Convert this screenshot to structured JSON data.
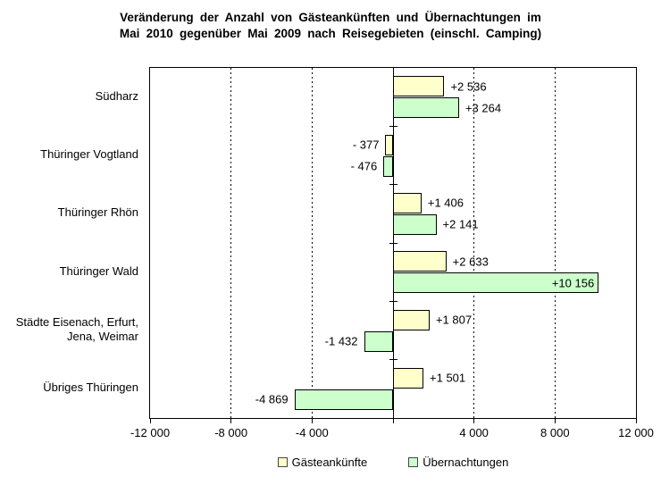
{
  "title": {
    "line1": "Veränderung der Anzahl von Gästeankünften und Übernachtungen im",
    "line2": "Mai 2010 gegenüber Mai 2009 nach Reisegebieten (einschl. Camping)"
  },
  "chart_data": {
    "type": "bar",
    "orientation": "horizontal",
    "title": "Veränderung der Anzahl von Gästeankünften und Übernachtungen im Mai 2010 gegenüber Mai 2009 nach Reisegebieten (einschl. Camping)",
    "categories": [
      "Südharz",
      "Thüringer Vogtland",
      "Thüringer Rhön",
      "Thüringer Wald",
      "Städte Eisenach, Erfurt,\nJena, Weimar",
      "Übriges Thüringen"
    ],
    "series": [
      {
        "name": "Gästeankünfte",
        "color": "#FFFFCC",
        "border_color": "#000000",
        "values": [
          2536,
          -377,
          1406,
          2633,
          1807,
          1501
        ],
        "labels": [
          "+2 536",
          "- 377",
          "+1 406",
          "+2 633",
          "+1 807",
          "+1 501"
        ]
      },
      {
        "name": "Übernachtungen",
        "color": "#CCFFCC",
        "border_color": "#000000",
        "values": [
          3264,
          -476,
          2141,
          10156,
          -1432,
          -4869
        ],
        "labels": [
          "+3 264",
          "- 476",
          "+2 141",
          "+10 156",
          "-1 432",
          "-4 869"
        ]
      }
    ],
    "xlim": [
      -12000,
      12000
    ],
    "x_ticks": [
      {
        "value": -12000,
        "label": "-12 000"
      },
      {
        "value": -8000,
        "label": "-8 000"
      },
      {
        "value": -4000,
        "label": "-4 000"
      },
      {
        "value": 0,
        "label": ""
      },
      {
        "value": 4000,
        "label": "4 000"
      },
      {
        "value": 8000,
        "label": "8 000"
      },
      {
        "value": 12000,
        "label": "12 000"
      }
    ],
    "gridline_values": [
      -8000,
      -4000,
      4000,
      8000
    ],
    "grid": "dashed-vertical",
    "zero_axis": true,
    "legend_position": "bottom",
    "labels_inside_values": [
      10156
    ]
  },
  "legend": {
    "items": [
      {
        "label": "Gästeankünfte",
        "color": "#FFFFCC"
      },
      {
        "label": "Übernachtungen",
        "color": "#CCFFCC"
      }
    ]
  }
}
